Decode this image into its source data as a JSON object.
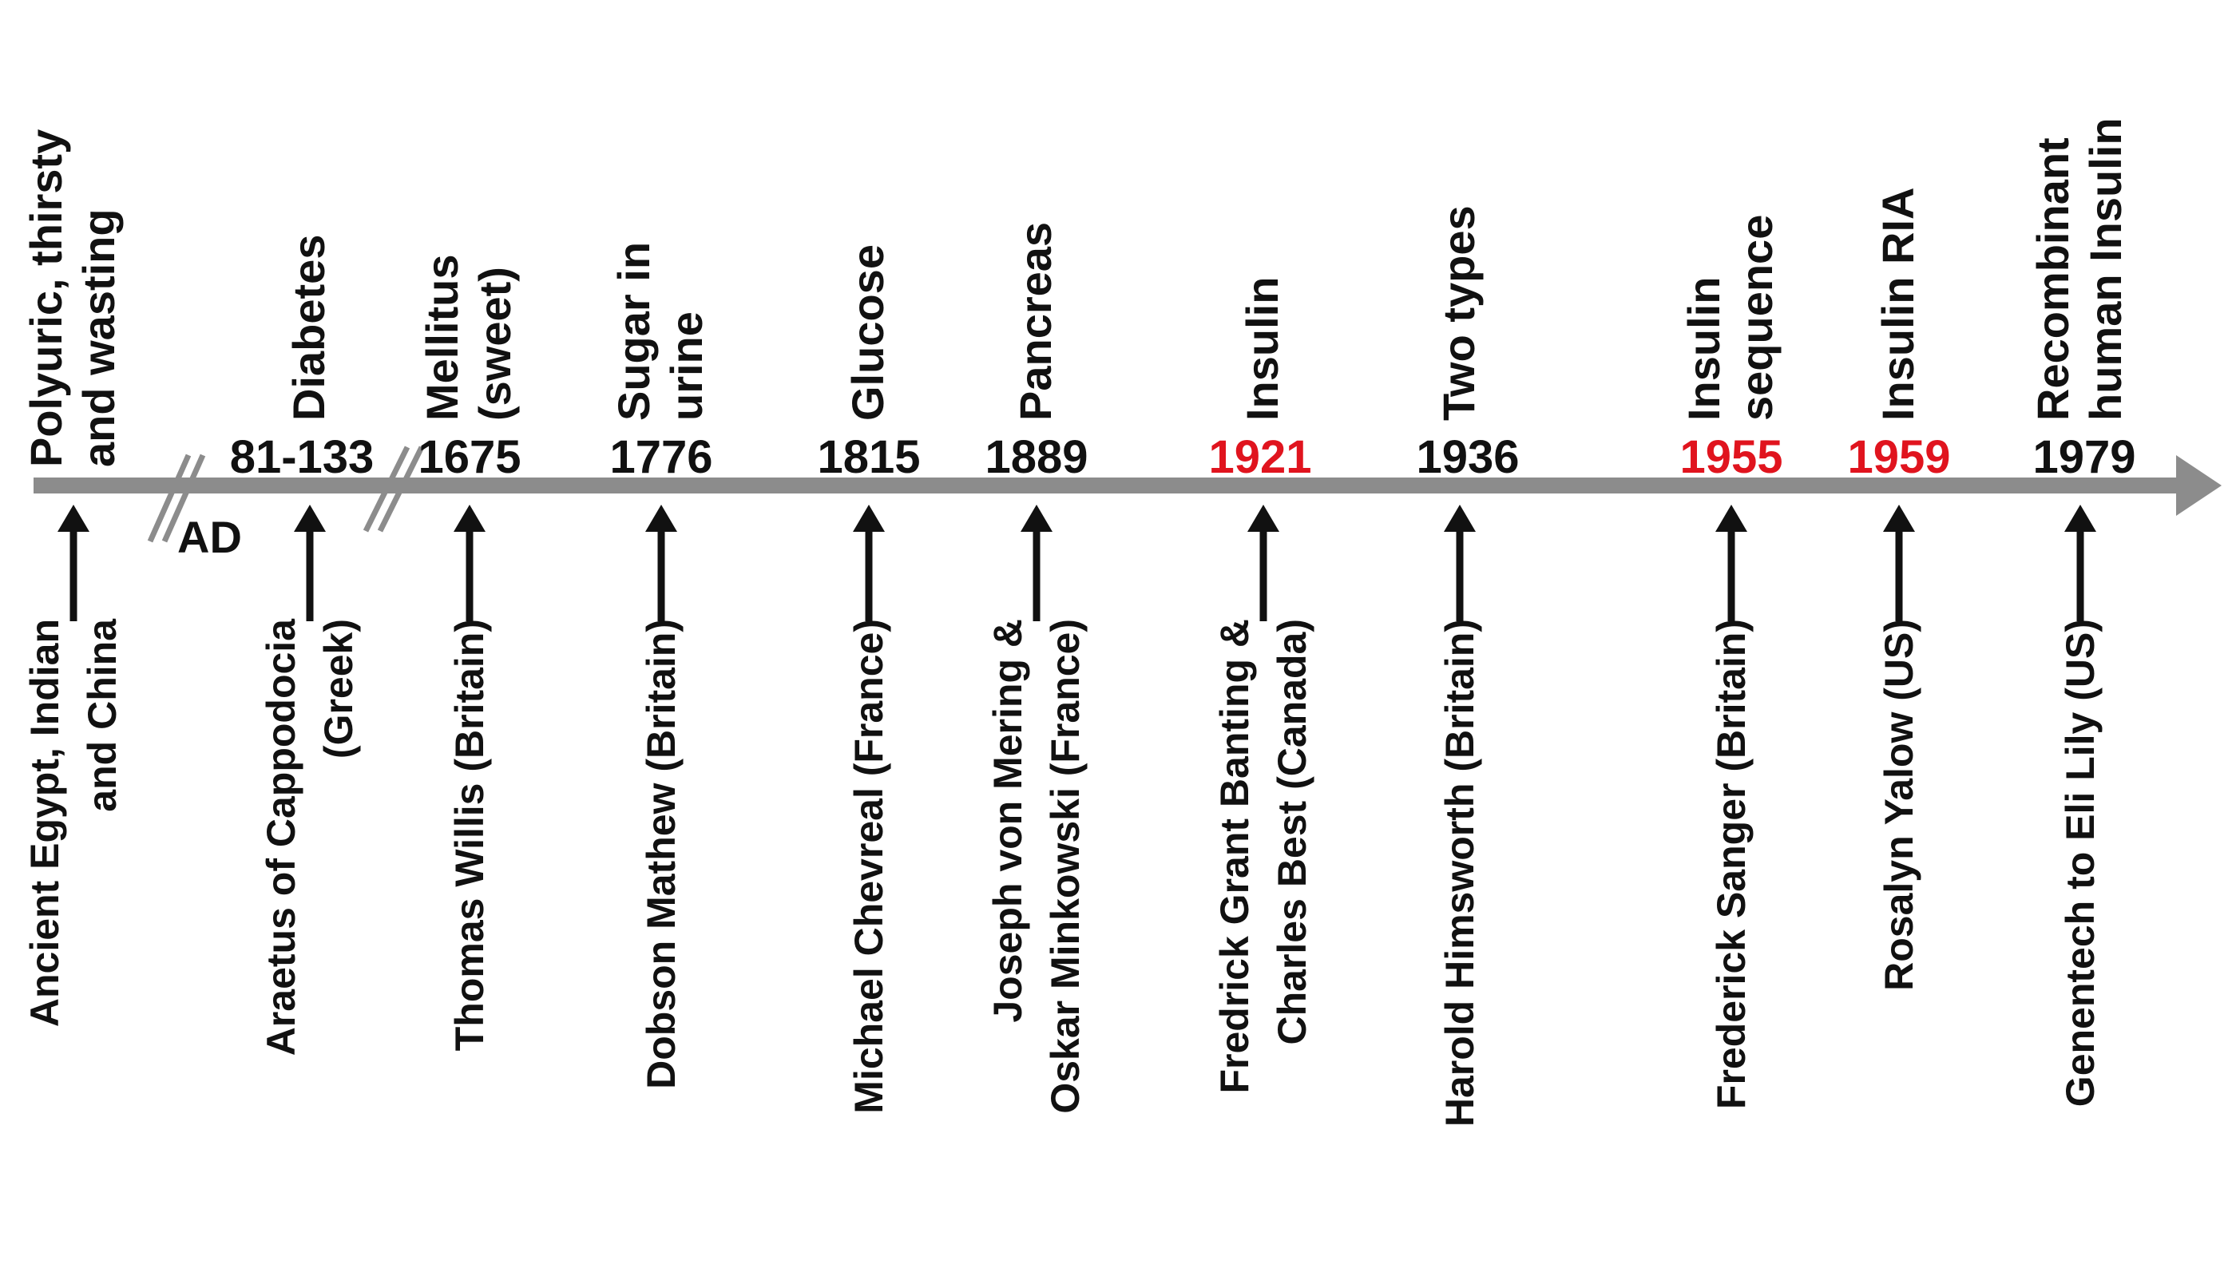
{
  "colors": {
    "axis": "#8c8c8c",
    "text": "#111111",
    "highlight": "#e0141e",
    "arrow": "#111111"
  },
  "era_label": "AD",
  "events": [
    {
      "year": "",
      "highlight": false,
      "discovery": [
        "Polyuric, thirsty",
        "and wasting"
      ],
      "people": [
        "Ancient Egypt, Indian",
        "and China"
      ]
    },
    {
      "year": "81-133",
      "highlight": false,
      "discovery": [
        "Diabetes"
      ],
      "people": [
        "Araetus of Cappodocia",
        "(Greek)"
      ]
    },
    {
      "year": "1675",
      "highlight": false,
      "discovery": [
        "Mellitus",
        "(sweet)"
      ],
      "people": [
        "Thomas Willis (Britain)"
      ]
    },
    {
      "year": "1776",
      "highlight": false,
      "discovery": [
        "Sugar in",
        "urine"
      ],
      "people": [
        "Dobson Mathew (Britain)"
      ]
    },
    {
      "year": "1815",
      "highlight": false,
      "discovery": [
        "Glucose"
      ],
      "people": [
        "Michael Chevreal (France)"
      ]
    },
    {
      "year": "1889",
      "highlight": false,
      "discovery": [
        "Pancreas"
      ],
      "people": [
        "Joseph von Mering &",
        "Oskar Minkowski (France)"
      ]
    },
    {
      "year": "1921",
      "highlight": true,
      "discovery": [
        "Insulin"
      ],
      "people": [
        "Fredrick Grant Banting &",
        "Charles Best (Canada)"
      ]
    },
    {
      "year": "1936",
      "highlight": false,
      "discovery": [
        "Two types"
      ],
      "people": [
        "Harold Himsworth  (Britain)"
      ]
    },
    {
      "year": "1955",
      "highlight": true,
      "discovery": [
        "Insulin",
        "sequence"
      ],
      "people": [
        "Frederick Sanger (Britain)"
      ]
    },
    {
      "year": "1959",
      "highlight": true,
      "discovery": [
        "Insulin RIA"
      ],
      "people": [
        "Rosalyn Yalow (US)"
      ]
    },
    {
      "year": "1979",
      "highlight": false,
      "discovery": [
        "Recombinant",
        "human Insulin"
      ],
      "people": [
        "Genentech to Eli Lily (US)"
      ]
    }
  ]
}
